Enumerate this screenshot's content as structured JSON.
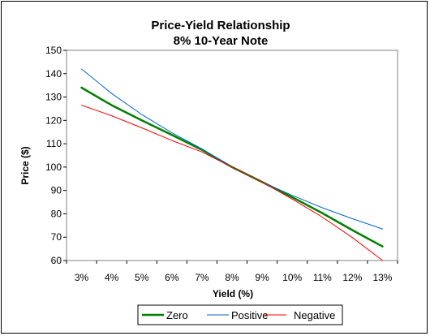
{
  "chart_data": {
    "type": "line",
    "title": "Price-Yield Relationship",
    "subtitle": "8% 10-Year Note",
    "xlabel": "Yield (%)",
    "ylabel": "Price ($)",
    "categories": [
      "3%",
      "4%",
      "5%",
      "6%",
      "7%",
      "8%",
      "9%",
      "10%",
      "11%",
      "12%",
      "13%"
    ],
    "ylim": [
      60,
      150
    ],
    "yticks": [
      60,
      70,
      80,
      90,
      100,
      110,
      120,
      130,
      140,
      150
    ],
    "ytick_labels": [
      "60",
      "70",
      "80",
      "90",
      "100",
      "110",
      "120",
      "130",
      "140",
      "150"
    ],
    "grid": false,
    "legend_position": "bottom",
    "series": [
      {
        "name": "Zero",
        "color": "#008000",
        "values": [
          134.0,
          126.5,
          120.0,
          113.8,
          107.4,
          100.0,
          93.6,
          87.1,
          80.3,
          73.0,
          66.0
        ]
      },
      {
        "name": "Positive",
        "color": "#0066CC",
        "values": [
          142.0,
          131.5,
          122.5,
          114.7,
          107.8,
          100.0,
          93.6,
          87.9,
          82.6,
          77.9,
          73.5
        ]
      },
      {
        "name": "Negative",
        "color": "#FF0000",
        "values": [
          126.5,
          122.0,
          116.8,
          111.4,
          106.5,
          100.0,
          93.6,
          86.3,
          78.6,
          69.8,
          60.0
        ]
      }
    ]
  }
}
